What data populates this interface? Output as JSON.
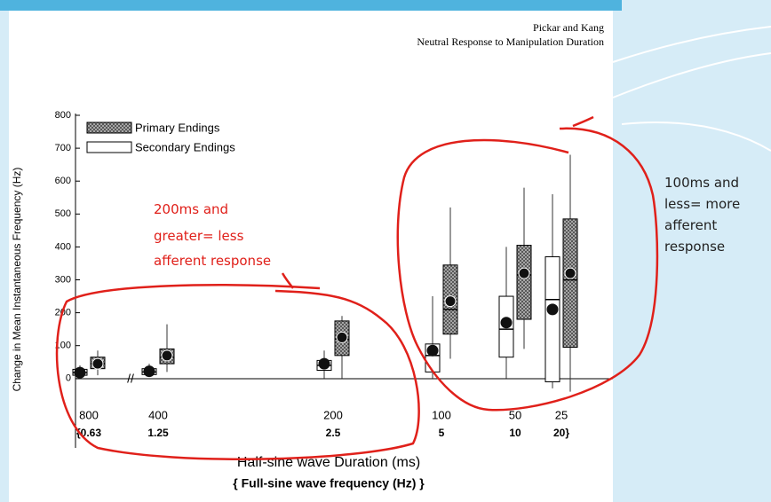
{
  "header": {
    "authors": "Pickar and Kang",
    "title": "Neutral Response to Manipulation Duration"
  },
  "annotations": [
    {
      "lines": [
        "200ms and",
        "greater= less",
        "afferent response"
      ]
    },
    {
      "lines": [
        "100ms and",
        "less= more",
        "afferent",
        "response"
      ]
    }
  ],
  "chart_data": {
    "type": "box",
    "ylabel": "Change in Mean Instantaneous Frequency (Hz)",
    "xlabel": "Half-sine wave Duration (ms)",
    "xlabel2": "{ Full-sine wave frequency (Hz) }",
    "categories": [
      "800",
      "400",
      "200",
      "100",
      "50",
      "25"
    ],
    "categories2": [
      "{0.63",
      "1.25",
      "2.5",
      "5",
      "10",
      "20}"
    ],
    "ylim": [
      -200,
      800
    ],
    "yticks": [
      0,
      100,
      200,
      300,
      400,
      500,
      600,
      700,
      800
    ],
    "series": [
      {
        "name": "Primary Endings",
        "color": "#888888",
        "min": [
          10,
          20,
          0,
          60,
          90,
          -40
        ],
        "q1": [
          30,
          45,
          70,
          135,
          180,
          95
        ],
        "median": [
          45,
          65,
          120,
          210,
          315,
          300
        ],
        "q3": [
          65,
          90,
          175,
          345,
          405,
          485
        ],
        "max": [
          85,
          165,
          190,
          520,
          580,
          680
        ],
        "mean": [
          45,
          70,
          125,
          235,
          320,
          320
        ]
      },
      {
        "name": "Secondary Endings",
        "color": "#ffffff",
        "min": [
          0,
          5,
          0,
          0,
          0,
          -30
        ],
        "q1": [
          10,
          12,
          25,
          20,
          65,
          -10
        ],
        "median": [
          18,
          20,
          40,
          70,
          150,
          240
        ],
        "q3": [
          28,
          30,
          55,
          105,
          250,
          370
        ],
        "max": [
          40,
          45,
          85,
          250,
          400,
          560
        ],
        "mean": [
          18,
          22,
          45,
          85,
          170,
          210
        ]
      }
    ]
  }
}
